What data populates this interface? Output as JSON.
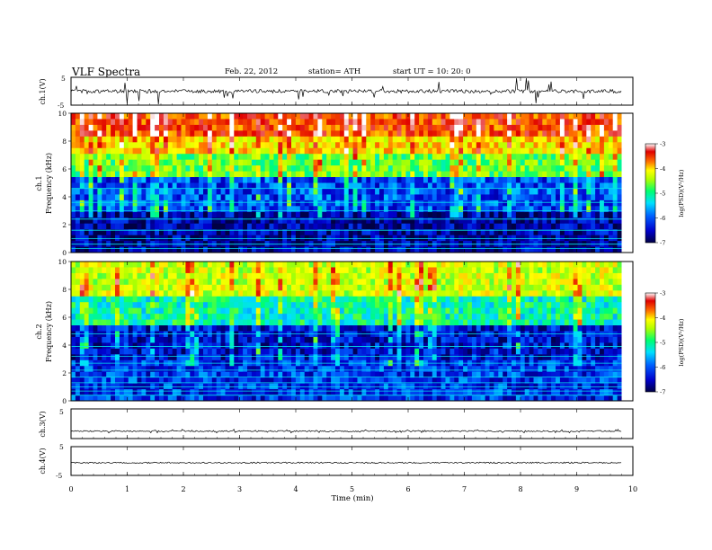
{
  "header": {
    "title": "VLF  Spectra",
    "date": "Feb. 22, 2012",
    "station": "station= ATH",
    "start": "start  UT  =    10: 20: 0"
  },
  "chart_data": [
    {
      "type": "line",
      "panel": "ch1-waveform",
      "ylabel": "ch.1(V)",
      "yticks": [
        "5",
        "-5"
      ],
      "ylim": [
        -5,
        5
      ],
      "baseline": 0,
      "spike_amplitude": 5
    },
    {
      "type": "heatmap",
      "panel": "ch1-spectrogram",
      "ylabel_channel": "ch.1",
      "ylabel": "Frequency  (kHz)",
      "ylim": [
        0,
        10
      ],
      "yticks": [
        "0",
        "2",
        "4",
        "6",
        "8",
        "10"
      ],
      "colorbar": {
        "label": "log(PSD)(V²/Hz)",
        "range": [
          -7,
          -3
        ],
        "ticks": [
          "-3",
          "-4",
          "-5",
          "-6",
          "-7"
        ]
      },
      "bands": [
        {
          "from_khz": 0,
          "to_khz": 3,
          "level": -6.7
        },
        {
          "from_khz": 3,
          "to_khz": 5.5,
          "level": -6.2
        },
        {
          "from_khz": 5.5,
          "to_khz": 7,
          "level": -5.0
        },
        {
          "from_khz": 7,
          "to_khz": 8.5,
          "level": -4.3
        },
        {
          "from_khz": 8.5,
          "to_khz": 10,
          "level": -3.7
        }
      ],
      "lines_khz": [
        0.3,
        0.6,
        1.0,
        1.6,
        2.4,
        3.0,
        3.6,
        4.6
      ]
    },
    {
      "type": "heatmap",
      "panel": "ch2-spectrogram",
      "ylabel_channel": "ch.2",
      "ylabel": "Frequency  (kHz)",
      "ylim": [
        0,
        10
      ],
      "yticks": [
        "0",
        "2",
        "4",
        "6",
        "8",
        "10"
      ],
      "colorbar": {
        "label": "log(PSD)(V²/Hz)",
        "range": [
          -7,
          -3
        ],
        "ticks": [
          "-3",
          "-4",
          "-5",
          "-6",
          "-7"
        ]
      },
      "bands": [
        {
          "from_khz": 0,
          "to_khz": 3,
          "level": -6.3
        },
        {
          "from_khz": 3,
          "to_khz": 5.5,
          "level": -6.5
        },
        {
          "from_khz": 5.5,
          "to_khz": 7.5,
          "level": -5.4
        },
        {
          "from_khz": 7.5,
          "to_khz": 10,
          "level": -4.6
        }
      ],
      "lines_khz": [
        0.4,
        0.7,
        1.0,
        1.3,
        1.7,
        2.2,
        2.7,
        3.2,
        3.9,
        4.8
      ]
    },
    {
      "type": "line",
      "panel": "ch3-waveform",
      "ylabel": "ch.3(V)",
      "yticks": [
        "5"
      ],
      "ylim": [
        -5,
        5
      ],
      "baseline": -2.5,
      "spike_amplitude": 0.6
    },
    {
      "type": "line",
      "panel": "ch4-waveform",
      "ylabel": "ch.4(V)",
      "yticks": [
        "5",
        "-5"
      ],
      "ylim": [
        -5,
        5
      ],
      "baseline": -0.6,
      "spike_amplitude": 0.15
    }
  ],
  "xaxis": {
    "label": "Time  (min)",
    "xlim": [
      0,
      10
    ],
    "ticks": [
      "0",
      "1",
      "2",
      "3",
      "4",
      "5",
      "6",
      "7",
      "8",
      "9",
      "10"
    ],
    "data_end_min": 9.8
  },
  "colors": {
    "scale": [
      "#000044",
      "#0000cc",
      "#0060ff",
      "#00e0ff",
      "#00ff70",
      "#b0ff00",
      "#ffff00",
      "#ff7000",
      "#e00000",
      "#ffffff"
    ]
  }
}
